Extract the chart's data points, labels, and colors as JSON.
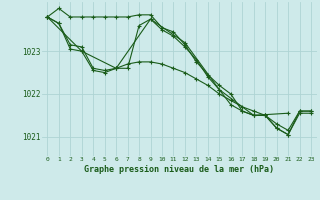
{
  "title": "Graphe pression niveau de la mer (hPa)",
  "bg_color": "#ceeaea",
  "grid_color": "#aed4d4",
  "line_color": "#1a5c1a",
  "xlim": [
    -0.5,
    23.5
  ],
  "ylim": [
    1020.55,
    1024.15
  ],
  "yticks": [
    1021,
    1022,
    1023
  ],
  "xticks": [
    0,
    1,
    2,
    3,
    4,
    5,
    6,
    7,
    8,
    9,
    10,
    11,
    12,
    13,
    14,
    15,
    16,
    17,
    18,
    19,
    20,
    21,
    22,
    23
  ],
  "series1_x": [
    0,
    1,
    2,
    3,
    4,
    5,
    6,
    7,
    8,
    9,
    10,
    11,
    12,
    13,
    14,
    15,
    16,
    17,
    18,
    19,
    20,
    21,
    22,
    23
  ],
  "series1_y": [
    1023.8,
    1024.0,
    1023.8,
    1023.8,
    1023.8,
    1023.8,
    1023.8,
    1023.8,
    1023.85,
    1023.85,
    1023.55,
    1023.45,
    1023.15,
    1022.75,
    1022.45,
    1022.2,
    1022.0,
    1021.6,
    1021.5,
    1021.5,
    1021.2,
    1021.05,
    1021.55,
    1021.55
  ],
  "series2_x": [
    0,
    1,
    2,
    3,
    4,
    5,
    6,
    7,
    8,
    9,
    10,
    11,
    12,
    13,
    14,
    15,
    16,
    17,
    18,
    19,
    20,
    21,
    22,
    23
  ],
  "series2_y": [
    1023.8,
    1023.65,
    1023.05,
    1023.0,
    1022.55,
    1022.5,
    1022.6,
    1022.6,
    1023.6,
    1023.75,
    1023.5,
    1023.35,
    1023.1,
    1022.8,
    1022.4,
    1022.1,
    1021.75,
    1021.6,
    1021.5,
    1021.5,
    1021.2,
    1021.05,
    1021.6,
    1021.6
  ],
  "series3_x": [
    0,
    3,
    6,
    9,
    12,
    15,
    18,
    21
  ],
  "series3_y": [
    1023.8,
    1023.0,
    1022.6,
    1023.75,
    1023.2,
    1022.1,
    1021.5,
    1021.55
  ],
  "series4_x": [
    0,
    1,
    2,
    3,
    4,
    5,
    6,
    7,
    8,
    9,
    10,
    11,
    12,
    13,
    14,
    15,
    16,
    17,
    18,
    19,
    20,
    21,
    22,
    23
  ],
  "series4_y": [
    1023.8,
    1023.65,
    1023.15,
    1023.1,
    1022.6,
    1022.55,
    1022.6,
    1022.7,
    1022.75,
    1022.75,
    1022.7,
    1022.6,
    1022.5,
    1022.35,
    1022.2,
    1022.0,
    1021.85,
    1021.7,
    1021.6,
    1021.5,
    1021.3,
    1021.15,
    1021.6,
    1021.6
  ]
}
